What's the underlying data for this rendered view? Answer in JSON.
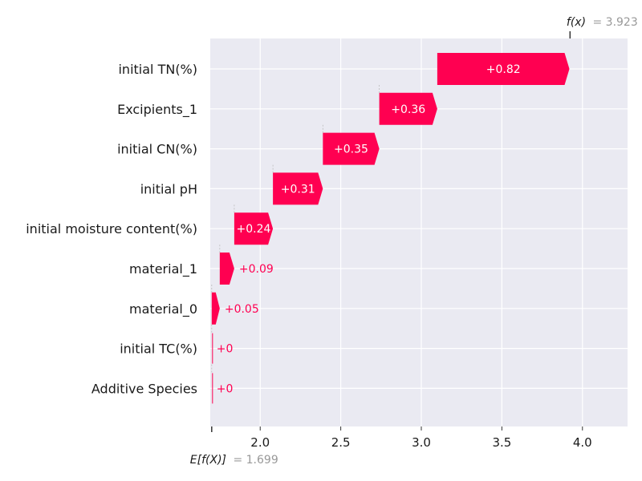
{
  "chart_data": {
    "type": "waterfall",
    "xlim": [
      1.69,
      4.28
    ],
    "xticks": [
      2.0,
      2.5,
      3.0,
      3.5,
      4.0
    ],
    "xtick_labels": [
      "2.0",
      "2.5",
      "3.0",
      "3.5",
      "4.0"
    ],
    "base_value": 1.699,
    "base_label_prefix": "E[f(X)]",
    "base_label_value": "= 1.699",
    "final_value": 3.923,
    "final_label_prefix": "f(x)",
    "final_label_value": "= 3.923",
    "features": [
      {
        "name": "initial TN(%)",
        "value": 0.82,
        "label": "+0.82"
      },
      {
        "name": "Excipients_1",
        "value": 0.36,
        "label": "+0.36"
      },
      {
        "name": "initial CN(%)",
        "value": 0.35,
        "label": "+0.35"
      },
      {
        "name": "initial pH",
        "value": 0.31,
        "label": "+0.31"
      },
      {
        "name": "initial moisture content(%)",
        "value": 0.24,
        "label": "+0.24"
      },
      {
        "name": "material_1",
        "value": 0.09,
        "label": "+0.09"
      },
      {
        "name": "material_0",
        "value": 0.05,
        "label": "+0.05"
      },
      {
        "name": "initial TC(%)",
        "value": 0.0,
        "label": "+0"
      },
      {
        "name": "Additive Species",
        "value": 0.0,
        "label": "+0"
      }
    ],
    "colors": {
      "positive": "#ff0051",
      "background": "#eaeaf2",
      "grid": "#ffffff",
      "muted_text": "#999999"
    }
  }
}
